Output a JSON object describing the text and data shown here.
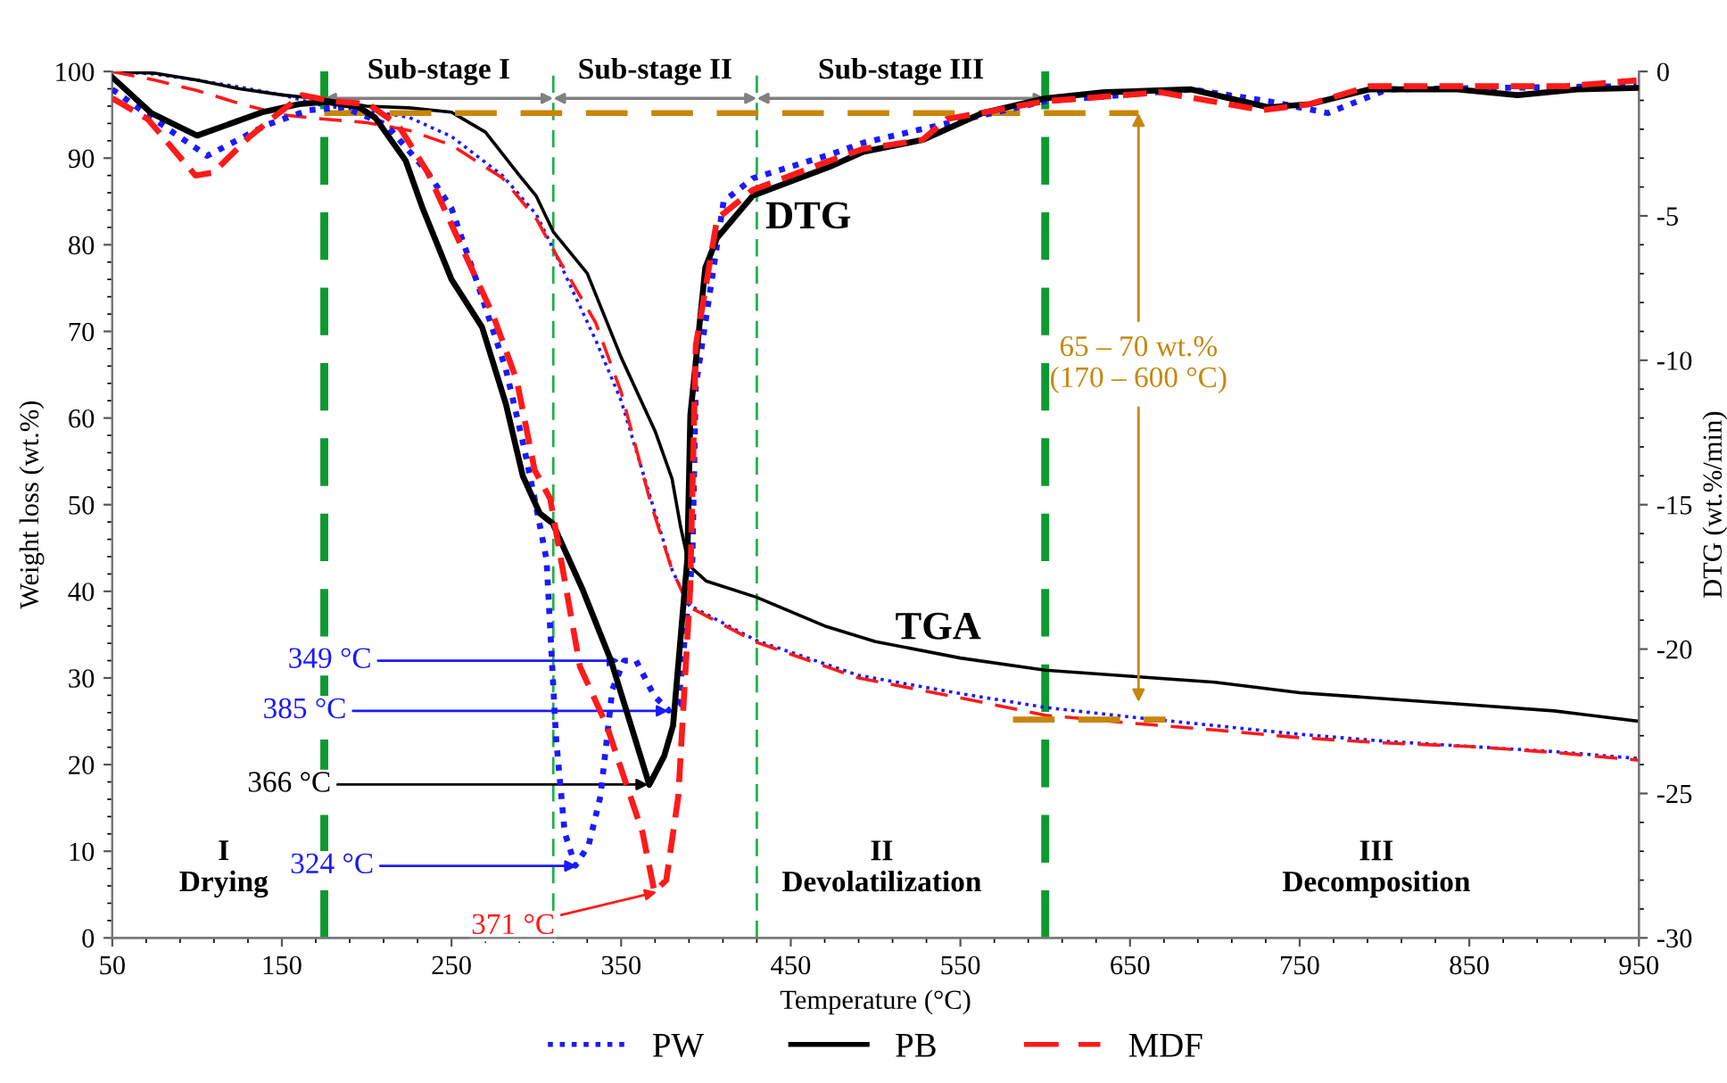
{
  "chart_data": {
    "type": "line",
    "xlabel": "Temperature (°C)",
    "ylabel": "Weight loss (wt.%)",
    "y2label": "DTG (wt.%/min)",
    "xlim": [
      50,
      950
    ],
    "xticks": [
      50,
      150,
      250,
      350,
      450,
      550,
      650,
      750,
      850,
      950
    ],
    "ylim": [
      0,
      100
    ],
    "yticks": [
      0,
      10,
      20,
      30,
      40,
      50,
      60,
      70,
      80,
      90,
      100
    ],
    "y2lim": [
      -30,
      0
    ],
    "y2ticks": [
      -30,
      -25,
      -20,
      -15,
      -10,
      -5,
      0
    ],
    "grid": false,
    "legend": "bottom",
    "marker": "none",
    "series": [
      {
        "name": "PW",
        "color": "#1a1aff",
        "line_style": "dotted",
        "x": [
          50,
          75,
          100,
          125,
          150,
          175,
          200,
          225,
          250,
          280,
          300,
          310,
          335,
          350,
          367,
          380,
          390,
          430,
          490,
          550,
          600,
          650,
          700,
          750,
          800,
          850,
          900,
          950
        ],
        "values": [
          100,
          99.7,
          99,
          98.2,
          97.3,
          96,
          95.5,
          94.7,
          92.5,
          88,
          83.5,
          79.5,
          69,
          62,
          51,
          42.5,
          38.4,
          34.3,
          30.3,
          28.2,
          26.6,
          25.5,
          24.5,
          23.5,
          22.7,
          22.1,
          21.5,
          20.7
        ]
      },
      {
        "name": "PB",
        "color": "#000000",
        "line_style": "solid",
        "x": [
          50,
          75,
          100,
          125,
          150,
          175,
          200,
          225,
          250,
          270,
          290,
          300,
          310,
          330,
          350,
          370,
          380,
          385,
          390,
          400,
          430,
          470,
          500,
          550,
          600,
          650,
          700,
          750,
          800,
          850,
          900,
          950
        ],
        "values": [
          100,
          99.8,
          99,
          98,
          97.3,
          96.8,
          96,
          95.8,
          95.3,
          93,
          88,
          85.6,
          81.5,
          76.7,
          67,
          58.5,
          53,
          47.5,
          43,
          41.2,
          39.3,
          36,
          34.2,
          32.3,
          30.9,
          30.2,
          29.5,
          28.3,
          27.6,
          26.9,
          26.2,
          25
        ]
      },
      {
        "name": "MDF",
        "color": "#ff1a1a",
        "line_style": "dashed",
        "x": [
          50,
          75,
          100,
          125,
          150,
          175,
          200,
          225,
          250,
          280,
          300,
          310,
          335,
          350,
          367,
          375,
          380,
          390,
          430,
          490,
          550,
          600,
          650,
          700,
          750,
          800,
          850,
          900,
          950
        ],
        "values": [
          100,
          99,
          97.8,
          96.3,
          95,
          94.5,
          94.1,
          93.2,
          91.5,
          87.7,
          83,
          79.4,
          71,
          63,
          50.5,
          45.5,
          42.5,
          38.2,
          34.1,
          30,
          27.7,
          25.7,
          24.8,
          24,
          23.1,
          22.5,
          22.1,
          21.4,
          20.5
        ]
      },
      {
        "axis": "y2",
        "color": "#1a1aff",
        "line_style": "dotted",
        "x": [
          50,
          74.5,
          106,
          141,
          165.7,
          186.7,
          211.6,
          236,
          250,
          264.5,
          282,
          292.6,
          299,
          306,
          311.6,
          316.7,
          323,
          330.8,
          337.8,
          344.8,
          351.8,
          358.8,
          369.3,
          378,
          383.7,
          392,
          394,
          410.4,
          427.6,
          473,
          492.7,
          545.3,
          600,
          686,
          731.6,
          766.7,
          801.8,
          948.6
        ],
        "values": [
          -0.62,
          -1.65,
          -2.92,
          -1.85,
          -1.34,
          -1.24,
          -1.85,
          -3.5,
          -4.74,
          -7.2,
          -10.3,
          -12.97,
          -14.8,
          -16.9,
          -23.06,
          -26.35,
          -27.5,
          -26.8,
          -25.1,
          -21.4,
          -20.4,
          -20.4,
          -21.6,
          -22.13,
          -21.93,
          -16.9,
          -10.9,
          -4.5,
          -3.7,
          -2.88,
          -2.47,
          -1.75,
          -1.03,
          -0.62,
          -1.03,
          -1.44,
          -0.62,
          -0.5
        ]
      },
      {
        "axis": "y2",
        "color": "#000000",
        "line_style": "solid",
        "x": [
          50,
          73,
          100,
          138,
          160,
          176,
          195,
          205,
          223,
          233,
          250,
          268,
          282,
          292,
          302,
          309.7,
          327,
          344,
          358,
          366.6,
          375.4,
          380.6,
          389,
          390.8,
          399.6,
          406.6,
          427.6,
          473,
          492.7,
          527.7,
          563,
          600,
          635,
          686,
          731.6,
          756,
          791,
          843,
          878.5,
          913.5,
          948.6
        ],
        "values": [
          -0.2,
          -1.44,
          -2.22,
          -1.42,
          -1.13,
          -1.05,
          -1.22,
          -1.6,
          -3.09,
          -4.74,
          -7.2,
          -8.85,
          -11.5,
          -14,
          -15.3,
          -15.65,
          -17.9,
          -20.4,
          -23.06,
          -24.7,
          -23.7,
          -22.65,
          -16.9,
          -11.9,
          -6.8,
          -5.76,
          -4.3,
          -3.3,
          -2.78,
          -2.37,
          -1.44,
          -0.93,
          -0.72,
          -0.62,
          -1.24,
          -1.13,
          -0.62,
          -0.62,
          -0.82,
          -0.62,
          -0.57
        ]
      },
      {
        "axis": "y2",
        "color": "#ff1a1a",
        "line_style": "dashed",
        "x": [
          50,
          71,
          99,
          109.6,
          130.7,
          148.2,
          162,
          180,
          201,
          218.5,
          236,
          257,
          274.5,
          288.5,
          299,
          308.2,
          325.7,
          341.5,
          352,
          362.6,
          369.6,
          376.6,
          383.7,
          390.7,
          394,
          406.6,
          427.6,
          473,
          492.7,
          527.7,
          541.8,
          600,
          668,
          728,
          756,
          791,
          906.6,
          948.6
        ],
        "values": [
          -0.93,
          -1.65,
          -3.6,
          -3.5,
          -2.27,
          -1.44,
          -0.82,
          -1.03,
          -1.13,
          -1.85,
          -3.5,
          -6.2,
          -8.44,
          -10.7,
          -13.8,
          -14.8,
          -20.6,
          -22.65,
          -24.5,
          -26.35,
          -28.4,
          -28,
          -25.1,
          -17.9,
          -9.5,
          -5.1,
          -4.1,
          -3.09,
          -2.68,
          -2.37,
          -1.65,
          -1.03,
          -0.72,
          -1.34,
          -1.13,
          -0.51,
          -0.51,
          -0.31
        ]
      },
      {
        "color": "#c8860a",
        "line_style": "dashed",
        "x": [
          175,
          655
        ],
        "values": [
          95.2,
          95.2
        ]
      },
      {
        "color": "#c8860a",
        "line_style": "dashed",
        "x": [
          581,
          671
        ],
        "values": [
          25.2,
          25.2
        ]
      }
    ],
    "ref_lines": [
      {
        "axis": "x",
        "value": 175,
        "color": "#0c9a30",
        "line_style": "dashed"
      },
      {
        "axis": "x",
        "value": 310,
        "color": "#22b04a",
        "line_style": "dashed"
      },
      {
        "axis": "x",
        "value": 430,
        "color": "#22b04a",
        "line_style": "dashed"
      },
      {
        "axis": "x",
        "value": 600,
        "color": "#0c9a30",
        "line_style": "dashed"
      }
    ],
    "annotations": [
      "Sub-stage I",
      "Sub-stage II",
      "Sub-stage III",
      "DTG",
      "TGA",
      {
        "text": "349 °C",
        "x": 349,
        "y": 32
      },
      {
        "text": "385 °C",
        "x": 378,
        "y": 26.2
      },
      {
        "text": "366 °C",
        "x": 366,
        "y": 17.7
      },
      {
        "text": "324 °C",
        "x": 324,
        "y": 8.3
      },
      {
        "text": "371 °C",
        "x": 371,
        "y": 5.3
      },
      {
        "text": "65 – 70 wt.%\n(170 – 600 °C)",
        "x": 655,
        "y": 95.2
      },
      "I\nDrying",
      "II\nDevolatilization",
      "III\nDecomposition"
    ]
  }
}
